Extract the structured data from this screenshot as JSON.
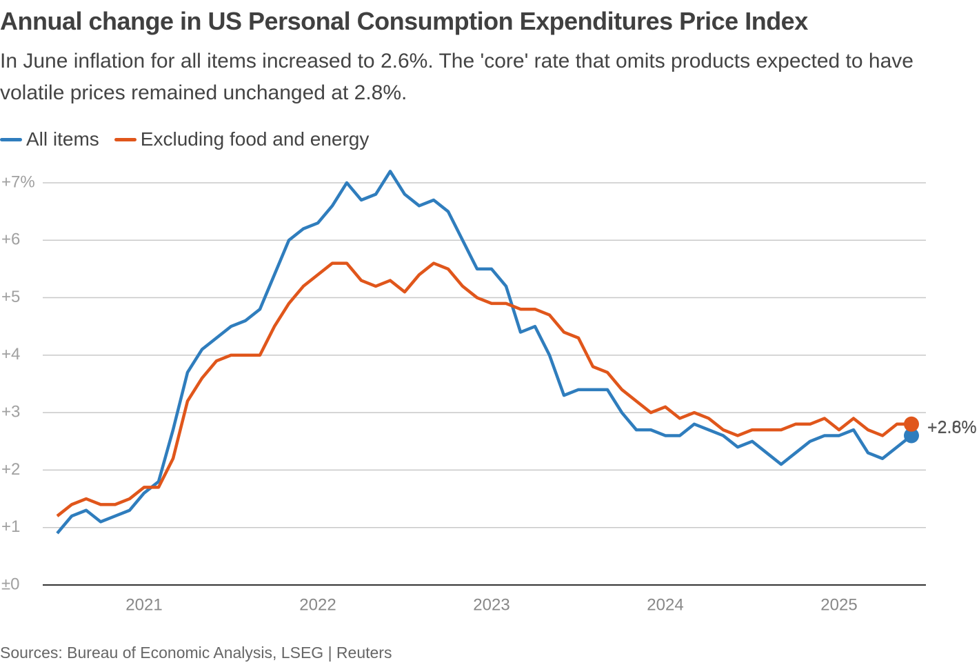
{
  "chart_data": {
    "type": "line",
    "title": "Annual change in US Personal Consumption Expenditures Price Index",
    "subtitle": "In June inflation for all items increased to 2.6%. The 'core' rate that omits products expected to have volatile prices remained unchanged at 2.8%.",
    "source": "Sources: Bureau of Economic Analysis, LSEG | Reuters",
    "categories": [
      null,
      null,
      null,
      null,
      null,
      null,
      "2021",
      null,
      null,
      null,
      null,
      null,
      null,
      null,
      null,
      null,
      null,
      null,
      "2022",
      null,
      null,
      null,
      null,
      null,
      null,
      null,
      null,
      null,
      null,
      null,
      "2023",
      null,
      null,
      null,
      null,
      null,
      null,
      null,
      null,
      null,
      null,
      null,
      "2024",
      null,
      null,
      null,
      null,
      null,
      null,
      null,
      null,
      null,
      null,
      null,
      "2025",
      null,
      null,
      null,
      null,
      null
    ],
    "series": [
      {
        "name": "All items",
        "color": "#2f7dbd",
        "values": [
          0.9,
          1.2,
          1.3,
          1.1,
          1.2,
          1.3,
          1.6,
          1.8,
          2.7,
          3.7,
          4.1,
          4.3,
          4.5,
          4.6,
          4.8,
          5.4,
          6.0,
          6.2,
          6.3,
          6.6,
          7.0,
          6.7,
          6.8,
          7.2,
          6.8,
          6.6,
          6.7,
          6.5,
          6.0,
          5.5,
          5.5,
          5.2,
          4.4,
          4.5,
          4.0,
          3.3,
          3.4,
          3.4,
          3.4,
          3.0,
          2.7,
          2.7,
          2.6,
          2.6,
          2.8,
          2.7,
          2.6,
          2.4,
          2.5,
          2.3,
          2.1,
          2.3,
          2.5,
          2.6,
          2.6,
          2.7,
          2.3,
          2.2,
          2.4,
          2.6
        ],
        "value_labels": [
          null,
          null,
          null,
          null,
          null,
          null,
          null,
          null,
          null,
          null,
          null,
          null,
          null,
          null,
          null,
          null,
          null,
          null,
          null,
          null,
          null,
          null,
          null,
          null,
          null,
          null,
          null,
          null,
          null,
          null,
          null,
          null,
          null,
          null,
          null,
          null,
          null,
          null,
          null,
          null,
          null,
          null,
          null,
          null,
          null,
          null,
          null,
          null,
          null,
          null,
          null,
          null,
          null,
          null,
          null,
          null,
          null,
          null,
          null,
          "+2.6%"
        ]
      },
      {
        "name": "Excluding food and energy",
        "color": "#e0561b",
        "values": [
          1.2,
          1.4,
          1.5,
          1.4,
          1.4,
          1.5,
          1.7,
          1.7,
          2.2,
          3.2,
          3.6,
          3.9,
          4.0,
          4.0,
          4.0,
          4.5,
          4.9,
          5.2,
          5.4,
          5.6,
          5.6,
          5.3,
          5.2,
          5.3,
          5.1,
          5.4,
          5.6,
          5.5,
          5.2,
          5.0,
          4.9,
          4.9,
          4.8,
          4.8,
          4.7,
          4.4,
          4.3,
          3.8,
          3.7,
          3.4,
          3.2,
          3.0,
          3.1,
          2.9,
          3.0,
          2.9,
          2.7,
          2.6,
          2.7,
          2.7,
          2.7,
          2.8,
          2.8,
          2.9,
          2.7,
          2.9,
          2.7,
          2.6,
          2.8,
          2.8
        ],
        "value_labels": [
          null,
          null,
          null,
          null,
          null,
          null,
          null,
          null,
          null,
          null,
          null,
          null,
          null,
          null,
          null,
          null,
          null,
          null,
          null,
          null,
          null,
          null,
          null,
          null,
          null,
          null,
          null,
          null,
          null,
          null,
          null,
          null,
          null,
          null,
          null,
          null,
          null,
          null,
          null,
          null,
          null,
          null,
          null,
          null,
          null,
          null,
          null,
          null,
          null,
          null,
          null,
          null,
          null,
          null,
          null,
          null,
          null,
          null,
          null,
          "+2.8%"
        ]
      }
    ],
    "ylim": [
      0,
      7.3
    ],
    "yticks": [
      {
        "value": 0,
        "label": "±0"
      },
      {
        "value": 1,
        "label": "+1"
      },
      {
        "value": 2,
        "label": "+2"
      },
      {
        "value": 3,
        "label": "+3"
      },
      {
        "value": 4,
        "label": "+4"
      },
      {
        "value": 5,
        "label": "+5"
      },
      {
        "value": 6,
        "label": "+6"
      },
      {
        "value": 7,
        "label": "+7%"
      }
    ],
    "grid": true
  }
}
